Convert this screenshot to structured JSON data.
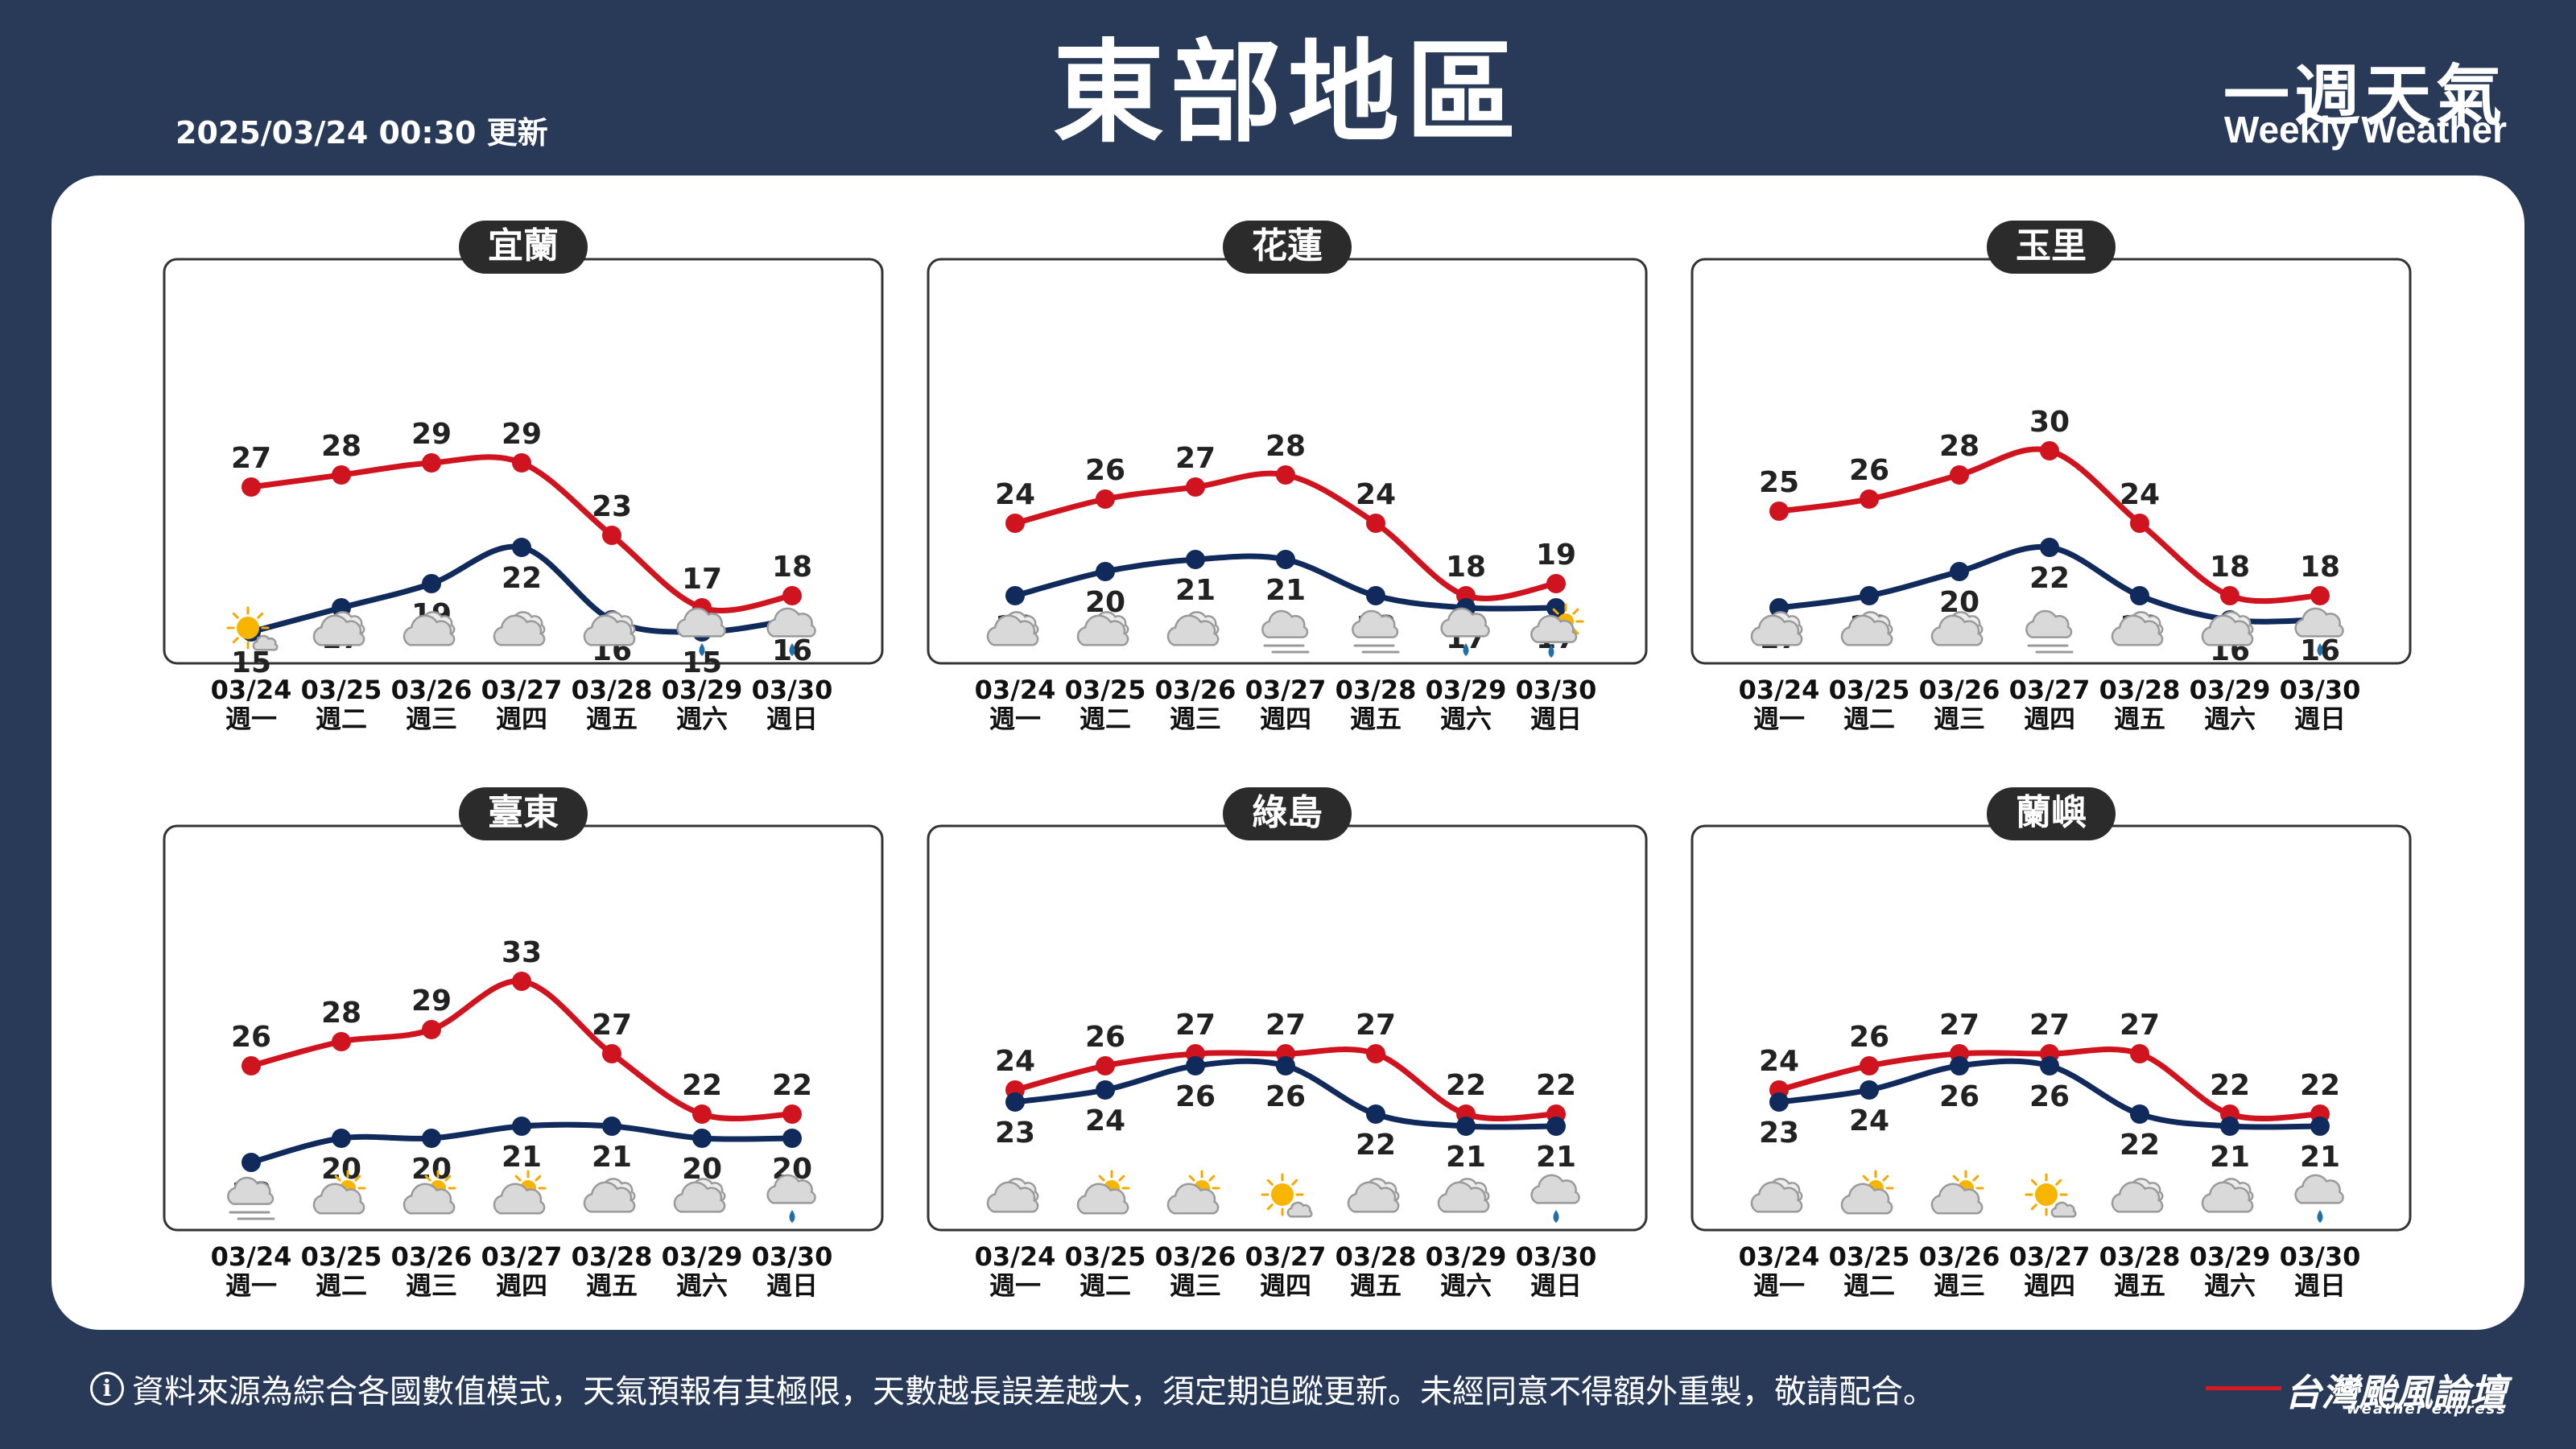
{
  "header": {
    "title": "東部地區",
    "updated": "2025/03/24 00:30 更新",
    "weekly_cn": "一週天氣",
    "weekly_en": "Weekly Weather"
  },
  "footer": {
    "info_glyph": "i",
    "note": "資料來源為綜合各國數值模式，天氣預報有其極限，天數越長誤差越大，須定期追蹤更新。未經同意不得額外重製，敬請配合。",
    "brand": "台灣颱風論壇",
    "brand_en": "weather express"
  },
  "colors": {
    "background": "#283a57",
    "high": "#d0141f",
    "low": "#102a5c",
    "label": "#222222"
  },
  "days": [
    {
      "date": "03/24",
      "weekday": "週一"
    },
    {
      "date": "03/25",
      "weekday": "週二"
    },
    {
      "date": "03/26",
      "weekday": "週三"
    },
    {
      "date": "03/27",
      "weekday": "週四"
    },
    {
      "date": "03/28",
      "weekday": "週五"
    },
    {
      "date": "03/29",
      "weekday": "週六"
    },
    {
      "date": "03/30",
      "weekday": "週日"
    }
  ],
  "chart_data": [
    {
      "type": "line",
      "title": "宜蘭",
      "x": [
        "03/24",
        "03/25",
        "03/26",
        "03/27",
        "03/28",
        "03/29",
        "03/30"
      ],
      "series": [
        {
          "values": [
            27,
            28,
            29,
            29,
            23,
            17,
            18
          ]
        },
        {
          "values": [
            15,
            17,
            19,
            22,
            16,
            15,
            16
          ]
        }
      ],
      "icons": [
        "sunny-cloud-icon",
        "cloudy-icon",
        "cloudy-icon",
        "cloudy-icon",
        "cloudy-icon",
        "rain-icon",
        "rain-icon"
      ]
    },
    {
      "type": "line",
      "title": "花蓮",
      "x": [
        "03/24",
        "03/25",
        "03/26",
        "03/27",
        "03/28",
        "03/29",
        "03/30"
      ],
      "series": [
        {
          "values": [
            24,
            26,
            27,
            28,
            24,
            18,
            19
          ]
        },
        {
          "values": [
            18,
            20,
            21,
            21,
            18,
            17,
            17
          ]
        }
      ],
      "icons": [
        "cloudy-icon",
        "cloudy-icon",
        "cloudy-icon",
        "fog-icon",
        "fog-icon",
        "rain-icon",
        "sun-rain-icon"
      ]
    },
    {
      "type": "line",
      "title": "玉里",
      "x": [
        "03/24",
        "03/25",
        "03/26",
        "03/27",
        "03/28",
        "03/29",
        "03/30"
      ],
      "series": [
        {
          "values": [
            25,
            26,
            28,
            30,
            24,
            18,
            18
          ]
        },
        {
          "values": [
            17,
            18,
            20,
            22,
            18,
            16,
            16
          ]
        }
      ],
      "icons": [
        "cloudy-icon",
        "cloudy-icon",
        "cloudy-icon",
        "fog-icon",
        "cloudy-icon",
        "cloudy-icon",
        "rain-icon"
      ]
    },
    {
      "type": "line",
      "title": "臺東",
      "x": [
        "03/24",
        "03/25",
        "03/26",
        "03/27",
        "03/28",
        "03/29",
        "03/30"
      ],
      "series": [
        {
          "values": [
            26,
            28,
            29,
            33,
            27,
            22,
            22
          ]
        },
        {
          "values": [
            18,
            20,
            20,
            21,
            21,
            20,
            20
          ]
        }
      ],
      "icons": [
        "fog-icon",
        "partly-sunny-icon",
        "partly-sunny-icon",
        "partly-sunny-icon",
        "cloudy-icon",
        "cloudy-icon",
        "rain-icon"
      ]
    },
    {
      "type": "line",
      "title": "綠島",
      "x": [
        "03/24",
        "03/25",
        "03/26",
        "03/27",
        "03/28",
        "03/29",
        "03/30"
      ],
      "series": [
        {
          "values": [
            24,
            26,
            27,
            27,
            27,
            22,
            22
          ]
        },
        {
          "values": [
            23,
            24,
            26,
            26,
            22,
            21,
            21
          ]
        }
      ],
      "icons": [
        "cloudy-icon",
        "partly-sunny-icon",
        "partly-sunny-icon",
        "sunny-cloud-icon",
        "cloudy-icon",
        "cloudy-icon",
        "rain-icon"
      ]
    },
    {
      "type": "line",
      "title": "蘭嶼",
      "x": [
        "03/24",
        "03/25",
        "03/26",
        "03/27",
        "03/28",
        "03/29",
        "03/30"
      ],
      "series": [
        {
          "values": [
            24,
            26,
            27,
            27,
            27,
            22,
            22
          ]
        },
        {
          "values": [
            23,
            24,
            26,
            26,
            22,
            21,
            21
          ]
        }
      ],
      "icons": [
        "cloudy-icon",
        "partly-sunny-icon",
        "partly-sunny-icon",
        "sunny-cloud-icon",
        "cloudy-icon",
        "cloudy-icon",
        "rain-icon"
      ]
    }
  ]
}
